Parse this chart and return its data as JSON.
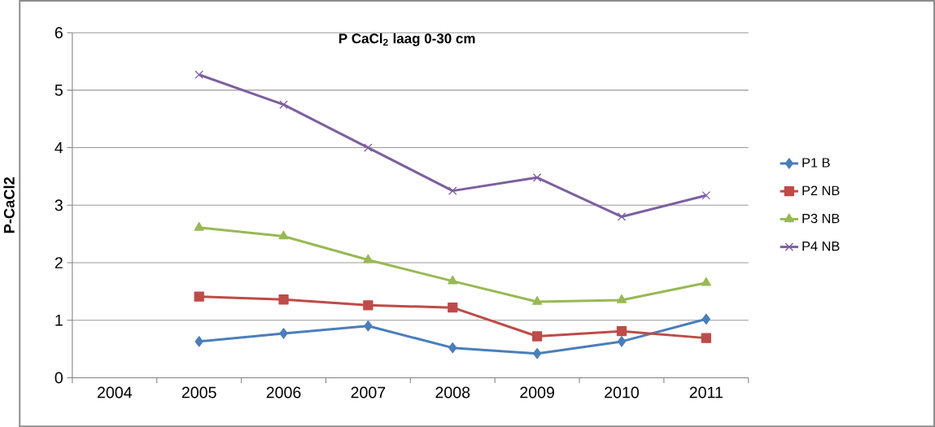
{
  "chart_data": {
    "type": "line",
    "title": "P CaCl$_{2}$ laag 0-30 cm",
    "ylabel": "P-CaCl2",
    "categories": [
      "2004",
      "2005",
      "2006",
      "2007",
      "2008",
      "2009",
      "2010",
      "2011"
    ],
    "series": [
      {
        "name": "P1 B",
        "color": "#4a7ebb",
        "marker": "diamond",
        "values": [
          null,
          0.63,
          0.77,
          0.9,
          0.52,
          0.42,
          0.63,
          1.02
        ]
      },
      {
        "name": "P2 NB",
        "color": "#be4b48",
        "marker": "square",
        "values": [
          null,
          1.41,
          1.36,
          1.26,
          1.22,
          0.72,
          0.81,
          0.69
        ]
      },
      {
        "name": "P3 NB",
        "color": "#98b954",
        "marker": "triangle",
        "values": [
          null,
          2.61,
          2.46,
          2.05,
          1.68,
          1.32,
          1.35,
          1.65
        ]
      },
      {
        "name": "P4 NB",
        "color": "#7d5fa0",
        "marker": "cross",
        "values": [
          null,
          5.27,
          4.75,
          4.0,
          3.25,
          3.48,
          2.8,
          3.17
        ]
      }
    ],
    "ylim": [
      0,
      6
    ],
    "yticks": [
      0,
      1,
      2,
      3,
      4,
      5,
      6
    ],
    "grid": "y",
    "legend": "right",
    "line_style": "solid"
  }
}
